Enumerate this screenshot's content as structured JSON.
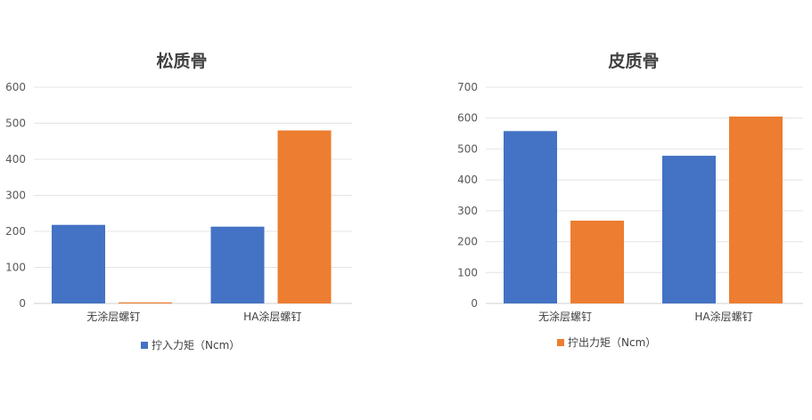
{
  "colors": {
    "series_1": "#4472C4",
    "series_2": "#ED7D31"
  },
  "chart_data": [
    {
      "type": "bar",
      "title": "松质骨",
      "categories": [
        "无涂层螺钉",
        "HA涂层螺钉"
      ],
      "series": [
        {
          "values": [
            218,
            213
          ]
        },
        {
          "values": [
            3,
            480
          ]
        }
      ],
      "ylim": [
        0,
        600
      ],
      "yticks": [
        "0",
        "100",
        "200",
        "300",
        "400",
        "500",
        "600"
      ],
      "legend": {
        "label": "拧入力矩（Ncm）",
        "placement": "bottom"
      },
      "grid": true
    },
    {
      "type": "bar",
      "title": "皮质骨",
      "categories": [
        "无涂层螺钉",
        "HA涂层螺钉"
      ],
      "series": [
        {
          "values": [
            558,
            478
          ]
        },
        {
          "values": [
            268,
            605
          ]
        }
      ],
      "ylim": [
        0,
        700
      ],
      "yticks": [
        "0",
        "100",
        "200",
        "300",
        "400",
        "500",
        "600",
        "700"
      ],
      "legend": {
        "label": "拧出力矩（Ncm）",
        "placement": "bottom"
      },
      "grid": true
    }
  ]
}
